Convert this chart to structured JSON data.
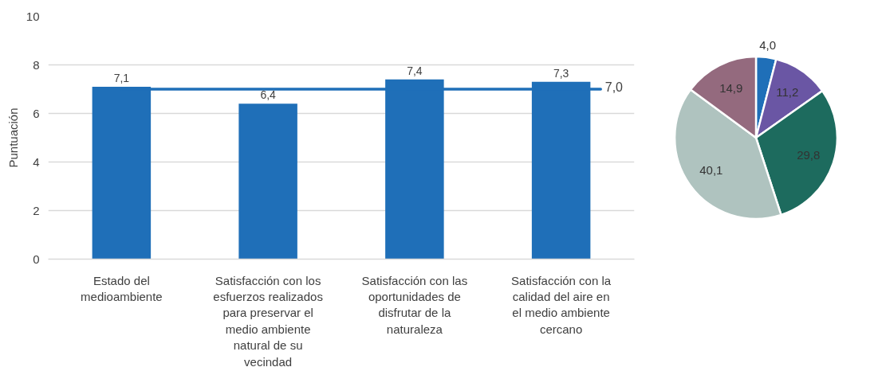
{
  "chart_data": [
    {
      "type": "bar",
      "ylabel": "Puntuación",
      "categories": [
        "Estado del medioambiente",
        "Satisfacción con los esfuerzos realizados para preservar el medio ambiente natural de su vecindad",
        "Satisfacción con las oportunidades de disfrutar de la naturaleza",
        "Satisfacción con la calidad del aire en el medio ambiente cercano"
      ],
      "values": [
        7.1,
        6.4,
        7.4,
        7.3
      ],
      "color": "#1f6fb8",
      "value_labels": [
        "7,1",
        "6,4",
        "7,4",
        "7,3"
      ],
      "ylim": [
        0,
        10
      ],
      "yticks": [
        0,
        2,
        4,
        6,
        8,
        10
      ],
      "grid": "y",
      "ref_lines": [
        {
          "axis": "y",
          "value": 7.0,
          "label": "7,0",
          "color": "#1f6fb8"
        }
      ]
    },
    {
      "type": "pie",
      "categories": [
        null,
        null,
        null,
        null,
        null
      ],
      "values": [
        4.0,
        11.2,
        29.8,
        40.1,
        14.9
      ],
      "colors": [
        "#1f6fb8",
        "#6a56a4",
        "#1d6b5e",
        "#afc3bf",
        "#946a7e"
      ],
      "value_labels": [
        "4,0",
        "11,2",
        "29,8",
        "40,1",
        "14,9"
      ]
    }
  ]
}
